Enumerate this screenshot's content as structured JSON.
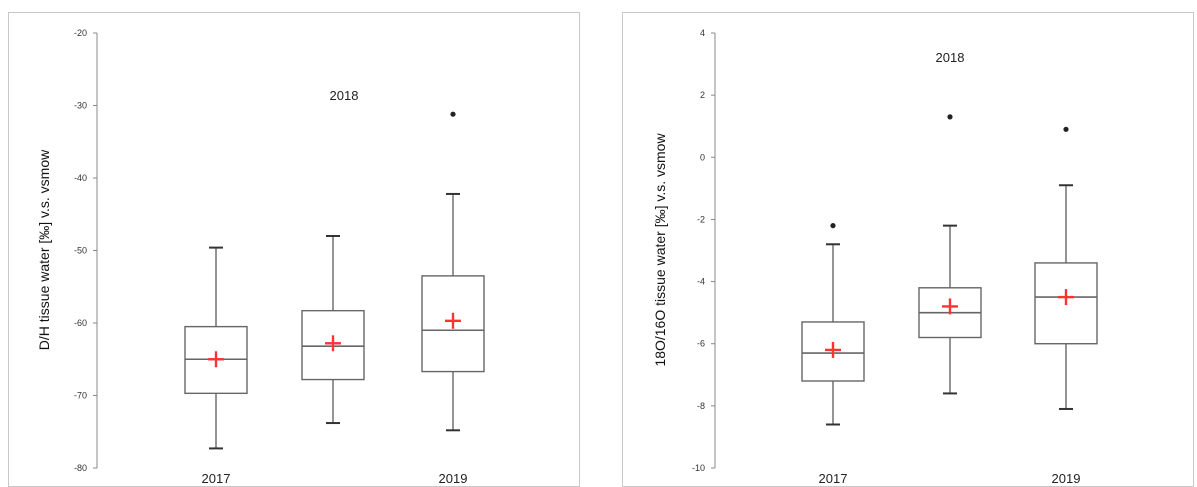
{
  "chart_data": [
    {
      "type": "boxplot",
      "ylabel": "D/H tissue water [‰] v.s. vsmow",
      "ylim": [
        -80,
        -20
      ],
      "yticks": [
        -20,
        -30,
        -40,
        -50,
        -60,
        -70,
        -80
      ],
      "categories": [
        "2017",
        "2018",
        "2019"
      ],
      "category_labels_shown": [
        "2017",
        "2018",
        "2019"
      ],
      "boxes": [
        {
          "category": "2017",
          "whisker_low": -77.3,
          "q1": -69.7,
          "median": -65.0,
          "q3": -60.5,
          "whisker_high": -49.6,
          "mean": -65.0,
          "outliers": []
        },
        {
          "category": "2018",
          "whisker_low": -73.8,
          "q1": -67.8,
          "median": -63.2,
          "q3": -58.3,
          "whisker_high": -48.0,
          "mean": -62.8,
          "outliers": []
        },
        {
          "category": "2019",
          "whisker_low": -74.8,
          "q1": -66.7,
          "median": -61.0,
          "q3": -53.5,
          "whisker_high": -42.2,
          "mean": -59.7,
          "outliers": [
            -31.2
          ]
        }
      ],
      "colors": {
        "box": "#666666",
        "mean_marker": "#ff3333",
        "outlier": "#222222"
      }
    },
    {
      "type": "boxplot",
      "ylabel": "18O/16O tissue water [‰] v.s. vsmow",
      "ylim": [
        -10,
        4
      ],
      "yticks": [
        4,
        2,
        0,
        -2,
        -4,
        -6,
        -8,
        -10
      ],
      "categories": [
        "2017",
        "2018",
        "2019"
      ],
      "category_labels_shown": [
        "2017",
        "2018",
        "2019"
      ],
      "boxes": [
        {
          "category": "2017",
          "whisker_low": -8.6,
          "q1": -7.2,
          "median": -6.3,
          "q3": -5.3,
          "whisker_high": -2.8,
          "mean": -6.2,
          "outliers": [
            -2.2
          ]
        },
        {
          "category": "2018",
          "whisker_low": -7.6,
          "q1": -5.8,
          "median": -5.0,
          "q3": -4.2,
          "whisker_high": -2.2,
          "mean": -4.8,
          "outliers": [
            1.3
          ]
        },
        {
          "category": "2019",
          "whisker_low": -8.1,
          "q1": -6.0,
          "median": -4.5,
          "q3": -3.4,
          "whisker_high": -0.9,
          "mean": -4.5,
          "outliers": [
            0.9
          ]
        }
      ],
      "colors": {
        "box": "#666666",
        "mean_marker": "#ff3333",
        "outlier": "#222222"
      }
    }
  ]
}
